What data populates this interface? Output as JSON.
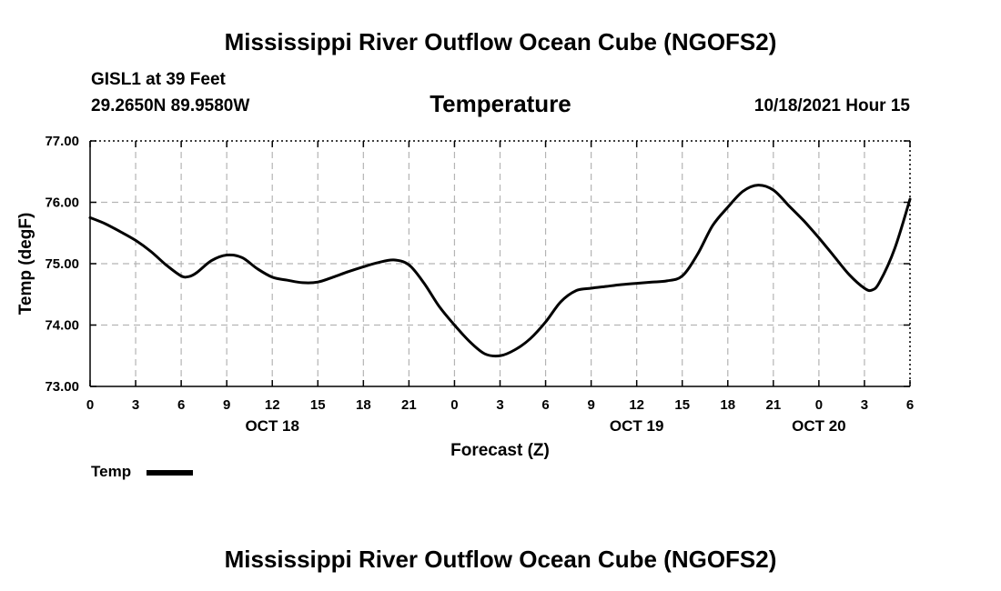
{
  "header": {
    "title": "Mississippi River Outflow Ocean Cube (NGOFS2)",
    "station": "GISL1 at 39 Feet",
    "coords": "29.2650N  89.9580W",
    "timestamp": "10/18/2021 Hour 15"
  },
  "footer": {
    "title": "Mississippi River Outflow Ocean Cube (NGOFS2)"
  },
  "legend": {
    "label": "Temp"
  },
  "chart_data": {
    "type": "line",
    "title": "Temperature",
    "xlabel": "Forecast (Z)",
    "ylabel": "Temp (degF)",
    "xlim": [
      0,
      54
    ],
    "ylim": [
      73,
      77
    ],
    "yticks": [
      73,
      74,
      75,
      76,
      77
    ],
    "ytick_labels": [
      "73.00",
      "74.00",
      "75.00",
      "76.00",
      "77.00"
    ],
    "xticks": [
      0,
      3,
      6,
      9,
      12,
      15,
      18,
      21,
      24,
      27,
      30,
      33,
      36,
      39,
      42,
      45,
      48,
      51,
      54
    ],
    "xtick_labels": [
      "0",
      "3",
      "6",
      "9",
      "12",
      "15",
      "18",
      "21",
      "0",
      "3",
      "6",
      "9",
      "12",
      "15",
      "18",
      "21",
      "0",
      "3",
      "6"
    ],
    "date_labels": [
      {
        "x": 12,
        "label": "OCT 18"
      },
      {
        "x": 36,
        "label": "OCT 19"
      },
      {
        "x": 48,
        "label": "OCT 20"
      }
    ],
    "grid": true,
    "series": [
      {
        "name": "Temp",
        "color": "#000000",
        "x": [
          0,
          1,
          2,
          3,
          4,
          5,
          6,
          6.5,
          7,
          8,
          9,
          10,
          11,
          12,
          13,
          14,
          15,
          16,
          17,
          18,
          19,
          20,
          21,
          22,
          23,
          24,
          25,
          26,
          27,
          28,
          29,
          30,
          31,
          32,
          33,
          34,
          35,
          36,
          37,
          38,
          39,
          40,
          41,
          42,
          43,
          44,
          45,
          46,
          47,
          48,
          49,
          50,
          51,
          51.5,
          52,
          53,
          54
        ],
        "values": [
          75.75,
          75.65,
          75.52,
          75.38,
          75.2,
          74.98,
          74.8,
          74.79,
          74.85,
          75.05,
          75.14,
          75.1,
          74.92,
          74.78,
          74.73,
          74.69,
          74.7,
          74.78,
          74.87,
          74.95,
          75.02,
          75.06,
          74.98,
          74.68,
          74.3,
          74.0,
          73.73,
          73.53,
          73.5,
          73.6,
          73.78,
          74.05,
          74.38,
          74.56,
          74.6,
          74.63,
          74.66,
          74.68,
          74.7,
          74.72,
          74.8,
          75.15,
          75.62,
          75.92,
          76.18,
          76.28,
          76.2,
          75.95,
          75.7,
          75.42,
          75.12,
          74.82,
          74.6,
          74.57,
          74.7,
          75.25,
          76.05
        ]
      }
    ]
  }
}
